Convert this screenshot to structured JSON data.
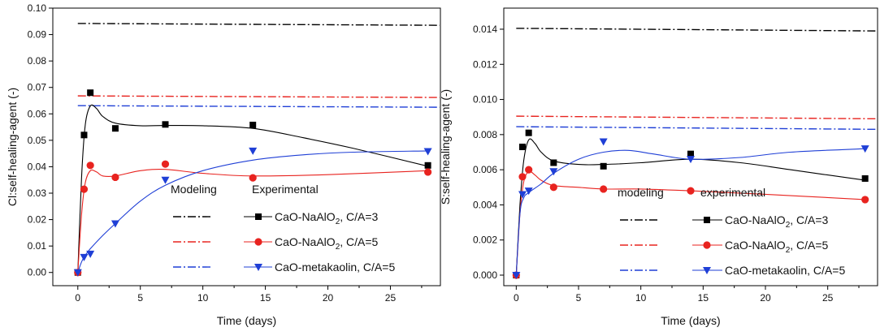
{
  "chart_data": [
    {
      "type": "line",
      "xlabel": "Time (days)",
      "ylabel": "Cl:self-healing-agent (-)",
      "xlim": [
        -2,
        29
      ],
      "ylim": [
        -0.005,
        0.1
      ],
      "xticks": [
        0,
        5,
        10,
        15,
        20,
        25
      ],
      "xtick_labels": [
        "0",
        "5",
        "10",
        "15",
        "20",
        "25"
      ],
      "yticks": [
        0,
        0.01,
        0.02,
        0.03,
        0.04,
        0.05,
        0.06,
        0.07,
        0.08,
        0.09,
        0.1
      ],
      "ytick_labels": [
        "0.00",
        "0.01",
        "0.02",
        "0.03",
        "0.04",
        "0.05",
        "0.06",
        "0.07",
        "0.08",
        "0.09",
        "0.10"
      ],
      "legend_headers": [
        "Modeling",
        "Experimental"
      ],
      "modeling_lines": [
        {
          "color": "#000000",
          "y_start": 0.0942,
          "y_end": 0.0935
        },
        {
          "color": "#e8231f",
          "y_start": 0.0668,
          "y_end": 0.0662
        },
        {
          "color": "#1f3fd6",
          "y_start": 0.0631,
          "y_end": 0.0625
        }
      ],
      "series": [
        {
          "name": "CaO-NaAlO₂, C/A=3",
          "color": "#000000",
          "marker": "square",
          "x": [
            0,
            0.5,
            1,
            3,
            7,
            14,
            28
          ],
          "y": [
            0.0,
            0.052,
            0.068,
            0.0545,
            0.056,
            0.0558,
            0.0405
          ],
          "fit_x": [
            0,
            0.3,
            0.6,
            1,
            1.5,
            2,
            3,
            5,
            7,
            10,
            14,
            18,
            22,
            28
          ],
          "fit_y": [
            0.0,
            0.036,
            0.056,
            0.063,
            0.062,
            0.059,
            0.0565,
            0.0555,
            0.0556,
            0.0555,
            0.0545,
            0.051,
            0.047,
            0.0402
          ]
        },
        {
          "name": "CaO-NaAlO₂, C/A=5",
          "color": "#e8231f",
          "marker": "circle",
          "x": [
            0,
            0.5,
            1,
            3,
            7,
            14,
            28
          ],
          "y": [
            0.0,
            0.0315,
            0.0405,
            0.036,
            0.041,
            0.0358,
            0.038
          ],
          "fit_x": [
            0,
            0.3,
            0.6,
            1,
            1.5,
            2,
            3,
            5,
            7,
            10,
            14,
            20,
            28
          ],
          "fit_y": [
            0.0,
            0.022,
            0.034,
            0.0385,
            0.038,
            0.0365,
            0.0365,
            0.0385,
            0.039,
            0.0375,
            0.0365,
            0.037,
            0.0385
          ]
        },
        {
          "name": "CaO-metakaolin, C/A=5",
          "color": "#1f3fd6",
          "marker": "triangle-down",
          "x": [
            0,
            0.5,
            1,
            3,
            7,
            14,
            28
          ],
          "y": [
            0.0,
            0.0058,
            0.007,
            0.0185,
            0.035,
            0.046,
            0.0458
          ],
          "fit_x": [
            0,
            0.3,
            0.6,
            1,
            2,
            3,
            5,
            7,
            10,
            14,
            18,
            22,
            28
          ],
          "fit_y": [
            0.0,
            0.004,
            0.0065,
            0.009,
            0.014,
            0.0185,
            0.027,
            0.033,
            0.0385,
            0.0425,
            0.0445,
            0.0455,
            0.046
          ]
        }
      ]
    },
    {
      "type": "line",
      "xlabel": "Time (days)",
      "ylabel": "S:self-healing-agent (-)",
      "xlim": [
        -1,
        29
      ],
      "ylim": [
        -0.0006,
        0.0152
      ],
      "xticks": [
        0,
        5,
        10,
        15,
        20,
        25
      ],
      "xtick_labels": [
        "0",
        "5",
        "10",
        "15",
        "20",
        "25"
      ],
      "yticks": [
        0,
        0.002,
        0.004,
        0.006,
        0.008,
        0.01,
        0.012,
        0.014
      ],
      "ytick_labels": [
        "0.000",
        "0.002",
        "0.004",
        "0.006",
        "0.008",
        "0.010",
        "0.012",
        "0.014"
      ],
      "legend_headers": [
        "modeling",
        "experimental"
      ],
      "modeling_lines": [
        {
          "color": "#000000",
          "y_start": 0.01405,
          "y_end": 0.0139
        },
        {
          "color": "#e8231f",
          "y_start": 0.00905,
          "y_end": 0.0089
        },
        {
          "color": "#1f3fd6",
          "y_start": 0.00845,
          "y_end": 0.0083
        }
      ],
      "series": [
        {
          "name": "CaO-NaAlO₂, C/A=3",
          "color": "#000000",
          "marker": "square",
          "x": [
            0,
            0.5,
            1,
            3,
            7,
            14,
            28
          ],
          "y": [
            0.0,
            0.0073,
            0.0081,
            0.0064,
            0.0062,
            0.0069,
            0.0055
          ],
          "fit_x": [
            0,
            0.3,
            0.6,
            1,
            1.5,
            2,
            3,
            5,
            7,
            10,
            14,
            18,
            22,
            28
          ],
          "fit_y": [
            0.0,
            0.004,
            0.0065,
            0.0077,
            0.0075,
            0.007,
            0.0065,
            0.0063,
            0.0063,
            0.0064,
            0.0066,
            0.0064,
            0.006,
            0.0054
          ]
        },
        {
          "name": "CaO-NaAlO₂, C/A=5",
          "color": "#e8231f",
          "marker": "circle",
          "x": [
            0,
            0.5,
            1,
            3,
            7,
            14,
            28
          ],
          "y": [
            0.0,
            0.0056,
            0.006,
            0.005,
            0.0049,
            0.0048,
            0.0043
          ],
          "fit_x": [
            0,
            0.3,
            0.6,
            1,
            1.5,
            2,
            3,
            5,
            7,
            10,
            14,
            20,
            28
          ],
          "fit_y": [
            0.0,
            0.0035,
            0.0053,
            0.0059,
            0.0057,
            0.0054,
            0.0051,
            0.005,
            0.0049,
            0.0049,
            0.0048,
            0.0046,
            0.0043
          ]
        },
        {
          "name": "CaO-metakaolin, C/A=5",
          "color": "#1f3fd6",
          "marker": "triangle-down",
          "x": [
            0,
            0.5,
            1,
            3,
            7,
            14,
            28
          ],
          "y": [
            0.0,
            0.0046,
            0.0048,
            0.0059,
            0.0076,
            0.0066,
            0.0072
          ],
          "fit_x": [
            0,
            0.3,
            0.6,
            1,
            2,
            3,
            5,
            7,
            9,
            11,
            14,
            18,
            22,
            28
          ],
          "fit_y": [
            0.0,
            0.0035,
            0.0044,
            0.0047,
            0.0052,
            0.0058,
            0.0066,
            0.007,
            0.0071,
            0.0069,
            0.0066,
            0.0067,
            0.007,
            0.0072
          ]
        }
      ]
    }
  ]
}
